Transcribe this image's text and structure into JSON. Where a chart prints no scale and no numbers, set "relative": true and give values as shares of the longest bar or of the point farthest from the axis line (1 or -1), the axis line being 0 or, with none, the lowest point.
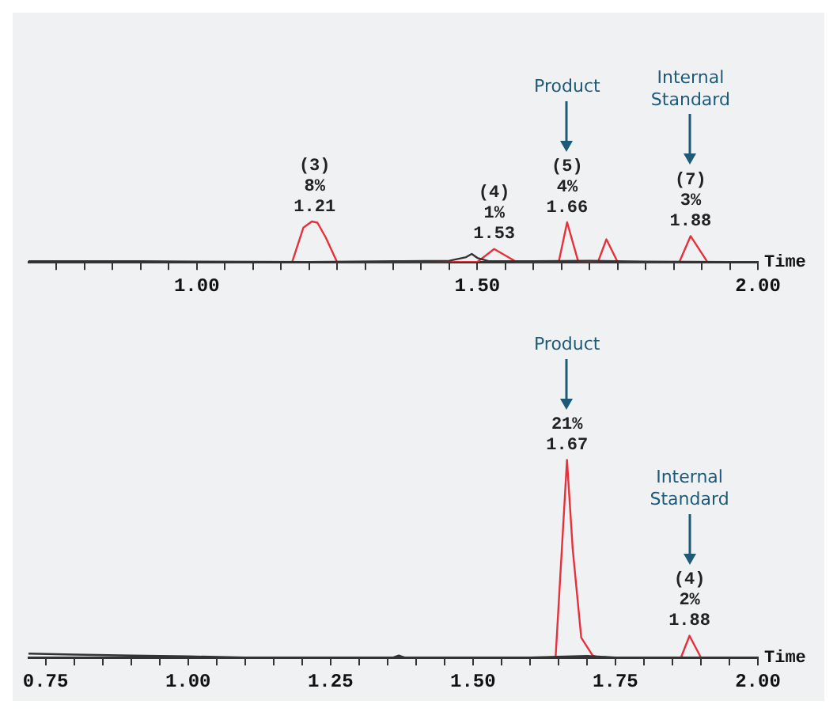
{
  "chart_data": [
    {
      "type": "line",
      "relative": true,
      "xlabel": "Time",
      "xlim": [
        0.7,
        2.0
      ],
      "xticks": [
        {
          "value": 0.75,
          "label": null
        },
        {
          "value": 0.8,
          "label": null
        },
        {
          "value": 0.85,
          "label": null
        },
        {
          "value": 0.9,
          "label": null
        },
        {
          "value": 0.95,
          "label": null
        },
        {
          "value": 1.0,
          "label": "1.00"
        },
        {
          "value": 1.05,
          "label": null
        },
        {
          "value": 1.1,
          "label": null
        },
        {
          "value": 1.15,
          "label": null
        },
        {
          "value": 1.2,
          "label": null
        },
        {
          "value": 1.25,
          "label": null
        },
        {
          "value": 1.3,
          "label": null
        },
        {
          "value": 1.35,
          "label": null
        },
        {
          "value": 1.4,
          "label": null
        },
        {
          "value": 1.45,
          "label": null
        },
        {
          "value": 1.5,
          "label": "1.50"
        },
        {
          "value": 1.55,
          "label": null
        },
        {
          "value": 1.6,
          "label": null
        },
        {
          "value": 1.65,
          "label": null
        },
        {
          "value": 1.7,
          "label": null
        },
        {
          "value": 1.75,
          "label": null
        },
        {
          "value": 1.8,
          "label": null
        },
        {
          "value": 1.85,
          "label": null
        },
        {
          "value": 1.9,
          "label": null
        },
        {
          "value": 1.95,
          "label": null
        },
        {
          "value": 2.0,
          "label": "2.00"
        }
      ],
      "tick_labels": "x",
      "grid": false,
      "legend": false,
      "marker": "none",
      "line_style": "solid",
      "series": [
        {
          "color": "#333333",
          "x": [
            0.7,
            0.9,
            1.0,
            1.2,
            1.35,
            1.45,
            1.48,
            1.49,
            1.5,
            1.52,
            1.6,
            1.7,
            1.8,
            1.95
          ],
          "values": [
            0.02,
            0.02,
            0.01,
            0.0,
            0.02,
            0.03,
            0.12,
            0.2,
            0.1,
            0.02,
            0.02,
            0.03,
            0.01,
            0.0
          ]
        },
        {
          "color": "#e8303a",
          "x": [
            1.17,
            1.19,
            1.205,
            1.215,
            1.23,
            1.25,
            1.5,
            1.53,
            1.57,
            1.645,
            1.66,
            1.68,
            1.715,
            1.73,
            1.75,
            1.86,
            1.88,
            1.91
          ],
          "values": [
            0.0,
            0.85,
            1.0,
            0.97,
            0.6,
            0.0,
            0.0,
            0.32,
            0.0,
            0.0,
            0.98,
            0.0,
            0.0,
            0.56,
            0.0,
            0.0,
            0.64,
            0.0
          ]
        }
      ],
      "annotations": [
        {
          "text": "(3)\n8%\n1.21",
          "x": 1.21,
          "y": 1.0
        },
        {
          "text": "(4)\n1%\n1.53",
          "x": 1.53,
          "y": 0.32
        },
        {
          "text": "(5)\n4%\n1.66",
          "x": 1.66,
          "y": 0.98
        },
        "Product",
        {
          "text": "(7)\n3%\n1.88",
          "x": 1.88,
          "y": 0.64
        },
        "Internal\nStandard"
      ]
    },
    {
      "type": "line",
      "relative": true,
      "xlabel": "Time",
      "xlim": [
        0.72,
        2.0
      ],
      "xticks": [
        {
          "value": 0.75,
          "label": "0.75"
        },
        {
          "value": 0.8,
          "label": null
        },
        {
          "value": 0.85,
          "label": null
        },
        {
          "value": 0.9,
          "label": null
        },
        {
          "value": 0.95,
          "label": null
        },
        {
          "value": 1.0,
          "label": "1.00"
        },
        {
          "value": 1.05,
          "label": null
        },
        {
          "value": 1.1,
          "label": null
        },
        {
          "value": 1.15,
          "label": null
        },
        {
          "value": 1.2,
          "label": null
        },
        {
          "value": 1.25,
          "label": "1.25"
        },
        {
          "value": 1.3,
          "label": null
        },
        {
          "value": 1.35,
          "label": null
        },
        {
          "value": 1.4,
          "label": null
        },
        {
          "value": 1.45,
          "label": null
        },
        {
          "value": 1.5,
          "label": "1.50"
        },
        {
          "value": 1.55,
          "label": null
        },
        {
          "value": 1.6,
          "label": null
        },
        {
          "value": 1.65,
          "label": null
        },
        {
          "value": 1.7,
          "label": null
        },
        {
          "value": 1.75,
          "label": "1.75"
        },
        {
          "value": 1.8,
          "label": null
        },
        {
          "value": 1.85,
          "label": null
        },
        {
          "value": 1.9,
          "label": null
        },
        {
          "value": 1.95,
          "label": null
        },
        {
          "value": 2.0,
          "label": "2.00"
        }
      ],
      "tick_labels": "x",
      "grid": false,
      "legend": false,
      "marker": "none",
      "line_style": "solid",
      "series": [
        {
          "color": "#333333",
          "x": [
            0.72,
            0.8,
            0.9,
            1.0,
            1.1,
            1.36,
            1.37,
            1.38,
            1.6,
            1.7,
            1.75,
            1.96
          ],
          "values": [
            0.02,
            0.015,
            0.01,
            0.006,
            0.0,
            0.0,
            0.01,
            0.0,
            0.0,
            0.008,
            0.0,
            0.0
          ]
        },
        {
          "color": "#e8303a",
          "x": [
            1.645,
            1.655,
            1.665,
            1.675,
            1.69,
            1.71,
            1.72,
            null,
            1.865,
            1.88,
            1.9
          ],
          "values": [
            0.0,
            0.5,
            1.0,
            0.55,
            0.1,
            0.01,
            0.0,
            null,
            0.0,
            0.11,
            0.0
          ]
        }
      ],
      "annotations": [
        {
          "text": "21%\n1.67",
          "x": 1.665,
          "y": 1.0
        },
        "Product",
        {
          "text": "(4)\n2%\n1.88",
          "x": 1.88,
          "y": 0.11
        },
        "Internal\nStandard"
      ]
    }
  ]
}
